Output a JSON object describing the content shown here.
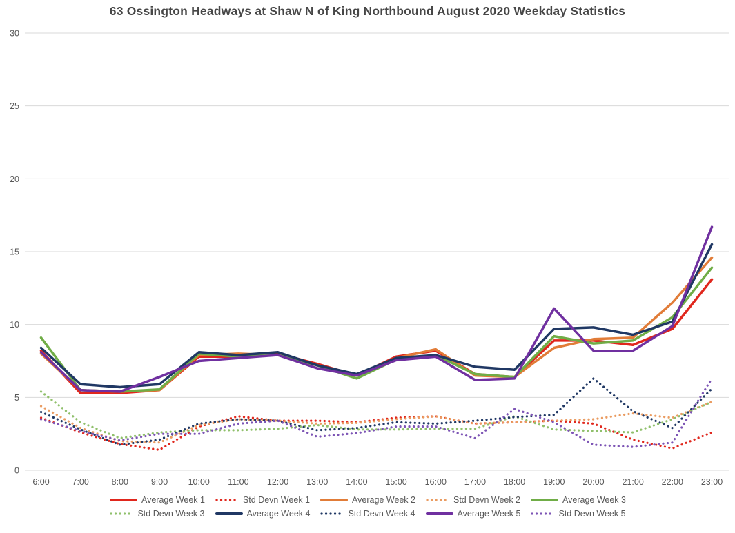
{
  "title": "63 Ossington Headways at Shaw N of King Northbound August 2020 Weekday Statistics",
  "colors": {
    "grid": "#D9D9D9",
    "axis_text": "#595959",
    "title_text": "#474747",
    "week1_red": "#E0271D",
    "week2_orange": "#E17C38",
    "week2_std_orange": "#EA9C62",
    "week3_green": "#70AD47",
    "week3_std_green": "#90C06C",
    "week4_navy": "#203864",
    "week5_purple": "#7030A0",
    "week5_std_purple": "#7D55B5"
  },
  "chart_data": {
    "type": "line",
    "title": "63 Ossington Headways at Shaw N of King Northbound August 2020 Weekday Statistics",
    "xlabel": "",
    "ylabel": "",
    "ylim": [
      0,
      30
    ],
    "y_ticks": [
      0,
      5,
      10,
      15,
      20,
      25,
      30
    ],
    "grid": "horizontal",
    "legend_position": "bottom",
    "categories": [
      "6:00",
      "7:00",
      "8:00",
      "9:00",
      "10:00",
      "11:00",
      "12:00",
      "13:00",
      "14:00",
      "15:00",
      "16:00",
      "17:00",
      "18:00",
      "19:00",
      "20:00",
      "21:00",
      "22:00",
      "23:00"
    ],
    "series": [
      {
        "name": "Average Week 1",
        "style": "solid",
        "color": "#E0271D",
        "values": [
          8.2,
          5.3,
          5.3,
          5.5,
          7.8,
          7.8,
          8.0,
          7.3,
          6.5,
          7.8,
          8.2,
          6.6,
          6.4,
          8.9,
          8.9,
          8.6,
          9.7,
          13.1
        ]
      },
      {
        "name": "Std Devn Week 1",
        "style": "dotted",
        "color": "#E0271D",
        "values": [
          3.6,
          2.6,
          1.8,
          1.4,
          3.0,
          3.7,
          3.4,
          3.4,
          3.3,
          3.6,
          3.7,
          3.2,
          3.3,
          3.4,
          3.2,
          2.1,
          1.5,
          2.6
        ]
      },
      {
        "name": "Average Week 2",
        "style": "solid",
        "color": "#E17C38",
        "values": [
          8.0,
          5.5,
          5.4,
          5.5,
          7.9,
          8.0,
          7.9,
          7.2,
          6.5,
          7.7,
          8.3,
          6.5,
          6.4,
          8.4,
          9.0,
          9.1,
          11.5,
          14.6
        ]
      },
      {
        "name": "Std Devn Week 2",
        "style": "dotted",
        "color": "#EA9C62",
        "values": [
          4.4,
          2.9,
          2.0,
          1.9,
          3.1,
          3.5,
          3.4,
          3.2,
          3.25,
          3.5,
          3.7,
          3.2,
          3.3,
          3.4,
          3.5,
          3.9,
          3.6,
          4.7
        ]
      },
      {
        "name": "Average Week 3",
        "style": "solid",
        "color": "#70AD47",
        "values": [
          9.1,
          5.5,
          5.4,
          5.55,
          8.0,
          7.8,
          7.9,
          7.2,
          6.3,
          7.6,
          7.9,
          6.6,
          6.4,
          9.2,
          8.7,
          8.9,
          10.5,
          13.9
        ]
      },
      {
        "name": "Std Devn Week 3",
        "style": "dotted",
        "color": "#90C06C",
        "values": [
          5.4,
          3.3,
          2.2,
          2.6,
          2.75,
          2.75,
          2.85,
          3.1,
          2.8,
          2.8,
          2.85,
          2.85,
          3.7,
          2.8,
          2.7,
          2.6,
          3.5,
          4.7
        ]
      },
      {
        "name": "Average Week 4",
        "style": "solid",
        "color": "#203864",
        "values": [
          8.4,
          5.9,
          5.7,
          5.9,
          8.1,
          7.9,
          8.1,
          7.2,
          6.6,
          7.7,
          7.9,
          7.1,
          6.9,
          9.7,
          9.8,
          9.3,
          10.2,
          15.5
        ]
      },
      {
        "name": "Std Devn Week 4",
        "style": "dotted",
        "color": "#203864",
        "values": [
          4.0,
          2.8,
          1.75,
          2.1,
          3.2,
          3.5,
          3.4,
          2.75,
          2.9,
          3.3,
          3.2,
          3.4,
          3.65,
          3.8,
          6.3,
          4.05,
          2.9,
          5.6
        ]
      },
      {
        "name": "Average Week 5",
        "style": "solid",
        "color": "#7030A0",
        "values": [
          8.1,
          5.5,
          5.4,
          6.4,
          7.5,
          7.7,
          7.9,
          7.0,
          6.5,
          7.55,
          7.8,
          6.2,
          6.3,
          11.1,
          8.2,
          8.2,
          9.9,
          16.7
        ]
      },
      {
        "name": "Std Devn Week 5",
        "style": "dotted",
        "color": "#7D55B5",
        "values": [
          3.5,
          2.7,
          2.05,
          2.5,
          2.5,
          3.2,
          3.4,
          2.3,
          2.55,
          3.0,
          3.0,
          2.2,
          4.2,
          3.3,
          1.75,
          1.6,
          1.9,
          6.3
        ]
      }
    ],
    "legend_rows": [
      [
        0,
        1,
        2,
        3,
        4
      ],
      [
        5,
        6,
        7,
        8,
        9
      ]
    ]
  }
}
